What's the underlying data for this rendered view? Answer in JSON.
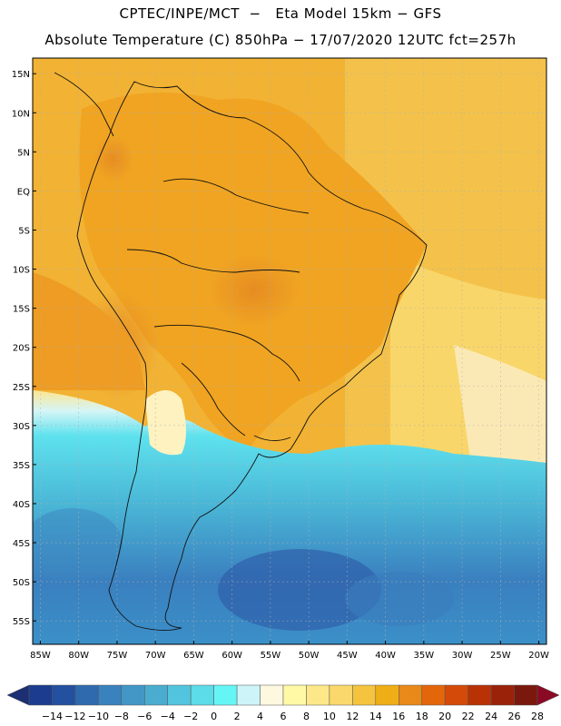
{
  "header": {
    "line1": "CPTEC/INPE/MCT  −   Eta Model 15km − GFS",
    "line2": "Absolute Temperature (C) 850hPa − 17/07/2020 12UTC fct=257h"
  },
  "map": {
    "projection": "lat-lon",
    "lon_range": [
      -86,
      -19
    ],
    "lat_range": [
      -58,
      17
    ],
    "lat_labels": [
      "15N",
      "10N",
      "5N",
      "EQ",
      "5S",
      "10S",
      "15S",
      "20S",
      "25S",
      "30S",
      "35S",
      "40S",
      "45S",
      "50S",
      "55S"
    ],
    "lat_values": [
      15,
      10,
      5,
      0,
      -5,
      -10,
      -15,
      -20,
      -25,
      -30,
      -35,
      -40,
      -45,
      -50,
      -55
    ],
    "lon_labels": [
      "85W",
      "80W",
      "75W",
      "70W",
      "65W",
      "60W",
      "55W",
      "50W",
      "45W",
      "40W",
      "35W",
      "30W",
      "25W",
      "20W"
    ],
    "lon_values": [
      -85,
      -80,
      -75,
      -70,
      -65,
      -60,
      -55,
      -50,
      -45,
      -40,
      -35,
      -30,
      -25,
      -20
    ],
    "gridlines": "dotted"
  },
  "colorbar": {
    "labels": [
      "−14",
      "−12",
      "−10",
      "−8",
      "−6",
      "−4",
      "−2",
      "0",
      "2",
      "4",
      "6",
      "8",
      "10",
      "12",
      "14",
      "16",
      "18",
      "20",
      "22",
      "24",
      "26",
      "28"
    ],
    "colors": [
      "#1c3d8f",
      "#23509f",
      "#2f6aae",
      "#3a82bd",
      "#4397c6",
      "#4aaccf",
      "#52c4dd",
      "#5cdbe8",
      "#66f5f5",
      "#cdf4f8",
      "#fff8e0",
      "#fff9a6",
      "#fde889",
      "#fad86c",
      "#f4c43e",
      "#f0ae16",
      "#e8891a",
      "#e3660b",
      "#d44a08",
      "#b83206",
      "#9a2208",
      "#7a180e"
    ],
    "left_arrow_color": "#1b2f72",
    "right_arrow_color": "#8a0a24"
  }
}
